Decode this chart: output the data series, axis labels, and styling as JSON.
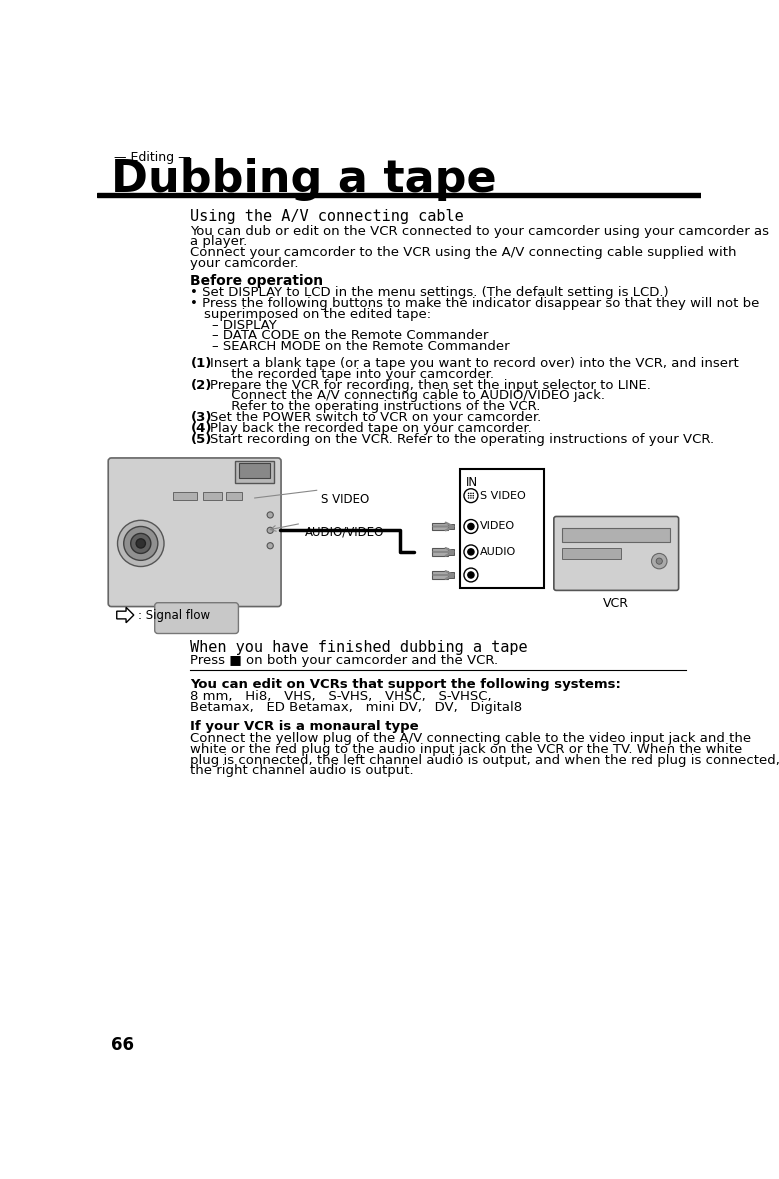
{
  "page_number": "66",
  "section_label": "— Editing —",
  "title": "Dubbing a tape",
  "subtitle": "Using the A/V connecting cable",
  "body_text": [
    "You can dub or edit on the VCR connected to your camcorder using your camcorder as",
    "a player.",
    "Connect your camcorder to the VCR using the A/V connecting cable supplied with",
    "your camcorder."
  ],
  "before_op_title": "Before operation",
  "before_op_bullets": [
    "Set DISPLAY to LCD in the menu settings. (The default setting is LCD.)",
    "Press the following buttons to make the indicator disappear so that they will not be",
    "superimposed on the edited tape:",
    "– DISPLAY",
    "– DATA CODE on the Remote Commander",
    "– SEARCH MODE on the Remote Commander"
  ],
  "step_texts": [
    [
      "(1)",
      "Insert a blank tape (or a tape you want to record over) into the VCR, and insert"
    ],
    [
      "",
      "     the recorded tape into your camcorder."
    ],
    [
      "(2)",
      "Prepare the VCR for recording, then set the input selector to LINE."
    ],
    [
      "",
      "     Connect the A/V connecting cable to AUDIO/VIDEO jack."
    ],
    [
      "",
      "     Refer to the operating instructions of the VCR."
    ],
    [
      "(3)",
      "Set the POWER switch to VCR on your camcorder."
    ],
    [
      "(4)",
      "Play back the recorded tape on your camcorder."
    ],
    [
      "(5)",
      "Start recording on the VCR. Refer to the operating instructions of your VCR."
    ]
  ],
  "finished_title": "When you have finished dubbing a tape",
  "finished_text": "Press ■ on both your camcorder and the VCR.",
  "vcr_systems_title": "You can edit on VCRs that support the following systems:",
  "vcr_systems_line1": "8 mm,   Hi8,   VHS,   S-VHS,   VHSC,   S-VHSC,",
  "vcr_systems_line2": "Betamax,   ED Betamax,   mini DV,   DV,   Digital8",
  "monaural_title": "If your VCR is a monaural type",
  "monaural_lines": [
    "Connect the yellow plug of the A/V connecting cable to the video input jack and the",
    "white or the red plug to the audio input jack on the VCR or the TV. When the white",
    "plug is connected, the left channel audio is output, and when the red plug is connected,",
    "the right channel audio is output."
  ],
  "diagram_labels": {
    "s_video": "S VIDEO",
    "audio_video": "AUDIO/VIDEO",
    "vcr_in": "IN",
    "vcr_s_video": "S VIDEO",
    "vcr_video": "VIDEO",
    "vcr_audio": "AUDIO",
    "vcr_label": "VCR",
    "signal_flow": ": Signal flow"
  },
  "bg_color": "#ffffff",
  "text_color": "#000000"
}
